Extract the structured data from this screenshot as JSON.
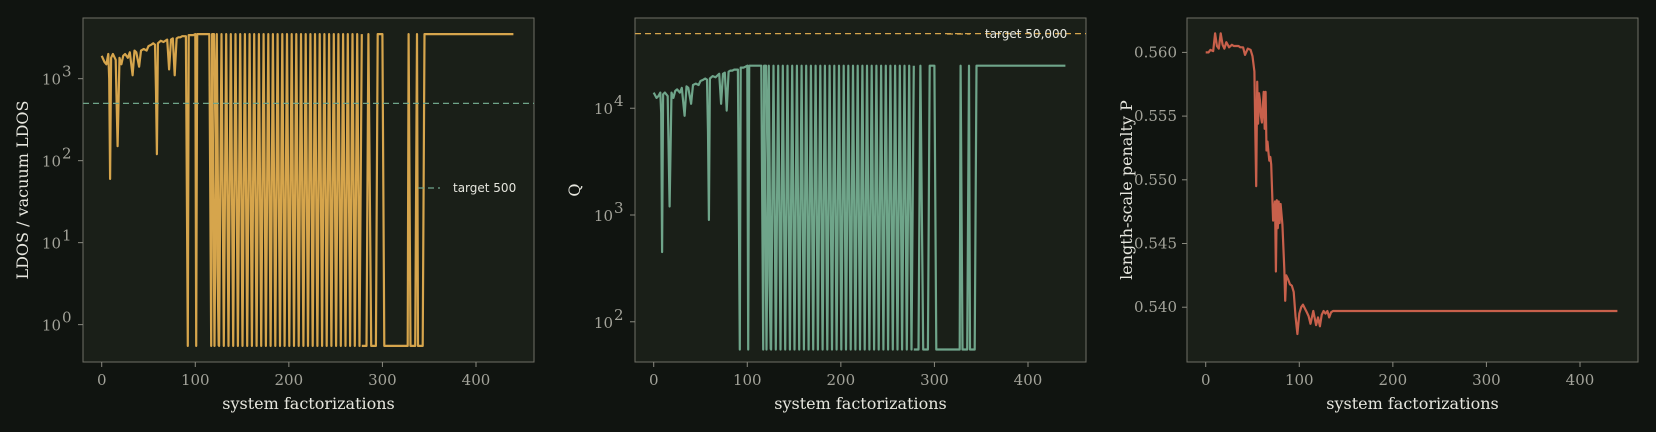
{
  "chart_data": [
    {
      "type": "line",
      "xlabel": "system factorizations",
      "ylabel": "LDOS / vacuum LDOS",
      "yscale": "log",
      "xlim": [
        -20,
        462
      ],
      "ylim": [
        0.35,
        5500
      ],
      "xticks": [
        0,
        100,
        200,
        300,
        400
      ],
      "yticks": [
        1,
        10,
        100,
        1000
      ],
      "ytick_labels": [
        "10",
        "10",
        "10",
        "10"
      ],
      "ytick_exponents": [
        "0",
        "1",
        "2",
        "3"
      ],
      "color": "#d6a54c",
      "grid": false,
      "legend_placement": "center-right",
      "target": {
        "value": 500,
        "label": "target 500",
        "color": "#6fa58a"
      },
      "series": [
        {
          "x": [
            0,
            3,
            5,
            7,
            8,
            9,
            10,
            12,
            15,
            17,
            19,
            21,
            23,
            25,
            28,
            30,
            33,
            35,
            37,
            40,
            42,
            45,
            48,
            50,
            53,
            55,
            57,
            58,
            59,
            60,
            63,
            66,
            70,
            72,
            74,
            76,
            78,
            80,
            82,
            84,
            86,
            88,
            90,
            92,
            93,
            94,
            96,
            98,
            100,
            101,
            102,
            104,
            106,
            108,
            110,
            115,
            117,
            118,
            120,
            125
          ],
          "y": [
            1900,
            1600,
            1500,
            2000,
            1000,
            60,
            1800,
            2000,
            1700,
            150,
            1800,
            1500,
            1900,
            2000,
            1800,
            2100,
            1100,
            2200,
            2100,
            1400,
            2200,
            2300,
            2200,
            2500,
            2600,
            2700,
            2600,
            700,
            120,
            2700,
            2900,
            2800,
            3000,
            1300,
            3000,
            3100,
            1100,
            3100,
            3200,
            3200,
            3300,
            3300,
            3300,
            0.55,
            3400,
            3400,
            3400,
            3400,
            3500,
            0.55,
            3500,
            3500,
            3500,
            3500,
            3500,
            3500,
            0.55,
            3500,
            3500,
            0.55
          ]
        },
        {
          "x_start": 118,
          "x_end": 278,
          "step": 2.5,
          "high": 3500,
          "low": 0.55
        },
        {
          "x": [
            278,
            283,
            285,
            288,
            293,
            295,
            300,
            302,
            305,
            307,
            310,
            315,
            320,
            322,
            325,
            327,
            328,
            330,
            333,
            335,
            337,
            338,
            340,
            343,
            345,
            350,
            360,
            380,
            400,
            420,
            440
          ],
          "y": [
            0.55,
            0.55,
            3500,
            0.55,
            0.55,
            3500,
            3500,
            0.55,
            0.55,
            0.55,
            0.55,
            0.55,
            0.55,
            0.55,
            0.55,
            0.55,
            3500,
            0.55,
            0.55,
            0.55,
            3500,
            0.55,
            0.55,
            0.55,
            3500,
            3500,
            3500,
            3500,
            3500,
            3500,
            3500
          ]
        }
      ]
    },
    {
      "type": "line",
      "xlabel": "system factorizations",
      "ylabel": "Q",
      "yscale": "log",
      "xlim": [
        -20,
        462
      ],
      "ylim": [
        42,
        70000
      ],
      "xticks": [
        0,
        100,
        200,
        300,
        400
      ],
      "yticks": [
        100,
        1000,
        10000
      ],
      "ytick_labels": [
        "10",
        "10",
        "10"
      ],
      "ytick_exponents": [
        "2",
        "3",
        "4"
      ],
      "color": "#6fa58a",
      "grid": false,
      "legend_placement": "top-right",
      "target": {
        "value": 50000,
        "label": "target 50,000",
        "color": "#d6a54c"
      },
      "series": [
        {
          "x": [
            0,
            3,
            5,
            7,
            8,
            9,
            10,
            12,
            15,
            17,
            19,
            21,
            23,
            25,
            28,
            30,
            33,
            35,
            37,
            40,
            42,
            45,
            48,
            50,
            53,
            55,
            57,
            58,
            59,
            60,
            63,
            66,
            70,
            72,
            74,
            76,
            78,
            80,
            82,
            84,
            86,
            88,
            90,
            92,
            93,
            94,
            96,
            98,
            100,
            101,
            102,
            104,
            106,
            108,
            110,
            115,
            117,
            118,
            120,
            125
          ],
          "y": [
            14000,
            12500,
            13000,
            14000,
            9000,
            450,
            13500,
            14000,
            13000,
            1200,
            14000,
            12500,
            14500,
            15000,
            14000,
            15500,
            8500,
            16000,
            15500,
            11000,
            16500,
            17000,
            16500,
            18000,
            18500,
            19000,
            18500,
            6000,
            900,
            19000,
            20000,
            19500,
            21000,
            11000,
            21000,
            21500,
            9500,
            22000,
            22500,
            22500,
            23000,
            23000,
            23000,
            55,
            24000,
            24000,
            24000,
            24500,
            25000,
            55,
            25000,
            25000,
            25000,
            25000,
            25000,
            25000,
            55,
            25000,
            25000,
            55
          ]
        },
        {
          "x_start": 118,
          "x_end": 278,
          "step": 2.5,
          "high": 25000,
          "low": 55
        },
        {
          "x": [
            278,
            283,
            285,
            288,
            293,
            295,
            300,
            302,
            305,
            307,
            310,
            315,
            320,
            322,
            325,
            327,
            328,
            330,
            333,
            335,
            337,
            338,
            340,
            343,
            345,
            350,
            360,
            380,
            400,
            420,
            440
          ],
          "y": [
            55,
            55,
            25000,
            55,
            55,
            25000,
            25000,
            55,
            55,
            55,
            55,
            55,
            55,
            55,
            55,
            55,
            25000,
            55,
            55,
            55,
            25000,
            55,
            55,
            55,
            25000,
            25000,
            25000,
            25000,
            25000,
            25000,
            25000
          ]
        }
      ]
    },
    {
      "type": "line",
      "xlabel": "system factorizations",
      "ylabel": "length-scale penalty P",
      "yscale": "linear",
      "xlim": [
        -20,
        462
      ],
      "ylim": [
        0.5357,
        0.5627
      ],
      "xticks": [
        0,
        100,
        200,
        300,
        400
      ],
      "yticks": [
        0.54,
        0.545,
        0.55,
        0.555,
        0.56
      ],
      "ytick_labels": [
        "0.540",
        "0.545",
        "0.550",
        "0.555",
        "0.560"
      ],
      "color": "#c8604b",
      "grid": false,
      "series": [
        {
          "x": [
            0,
            3,
            5,
            8,
            10,
            12,
            14,
            16,
            18,
            20,
            22,
            25,
            28,
            30,
            33,
            35,
            37,
            40,
            42,
            45,
            48,
            50,
            52,
            53,
            54,
            55,
            56,
            57,
            58,
            59,
            60,
            62,
            63,
            64,
            65,
            66,
            67,
            68,
            69,
            70,
            72,
            74,
            75,
            76,
            77,
            78,
            79,
            80,
            82,
            84,
            85,
            86,
            88,
            90,
            92,
            94,
            96,
            98,
            100,
            102,
            104,
            106,
            108,
            110,
            112,
            115,
            118,
            120,
            122,
            124,
            126,
            128,
            130,
            132,
            134,
            136,
            138,
            140,
            142,
            145,
            150,
            160,
            180,
            200,
            250,
            300,
            350,
            400,
            440
          ],
          "y": [
            0.56,
            0.56,
            0.5602,
            0.5601,
            0.5615,
            0.5605,
            0.5603,
            0.5615,
            0.5606,
            0.5603,
            0.5608,
            0.5604,
            0.5606,
            0.5605,
            0.5605,
            0.5605,
            0.5604,
            0.5604,
            0.5598,
            0.5603,
            0.5602,
            0.5597,
            0.5585,
            0.5538,
            0.5495,
            0.5577,
            0.5544,
            0.5568,
            0.5562,
            0.555,
            0.5545,
            0.5569,
            0.554,
            0.5569,
            0.5523,
            0.553,
            0.5522,
            0.5515,
            0.5518,
            0.5512,
            0.5468,
            0.5483,
            0.5428,
            0.5484,
            0.5462,
            0.5483,
            0.5466,
            0.5481,
            0.5465,
            0.543,
            0.5405,
            0.5425,
            0.5422,
            0.5418,
            0.5417,
            0.5412,
            0.5393,
            0.5379,
            0.5395,
            0.54,
            0.5402,
            0.5399,
            0.5396,
            0.5393,
            0.5387,
            0.5397,
            0.5386,
            0.5392,
            0.5385,
            0.5394,
            0.5397,
            0.5395,
            0.5397,
            0.5392,
            0.5396,
            0.5397,
            0.5397,
            0.5397,
            0.5397,
            0.5397,
            0.5397,
            0.5397,
            0.5397,
            0.5397,
            0.5397,
            0.5397,
            0.5397,
            0.5397,
            0.5397
          ]
        }
      ]
    }
  ]
}
